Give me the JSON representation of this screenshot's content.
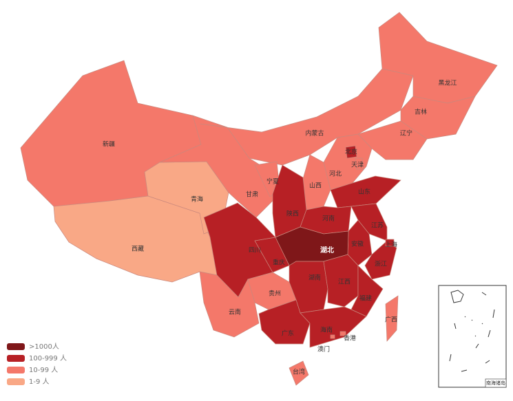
{
  "map": {
    "regions": [
      {
        "name": "新疆",
        "color": "#f4786a"
      },
      {
        "name": "西藏",
        "color": "#f9a886"
      },
      {
        "name": "青海",
        "color": "#f9a886"
      },
      {
        "name": "甘肃",
        "color": "#f4786a"
      },
      {
        "name": "内蒙古",
        "color": "#f4786a"
      },
      {
        "name": "黑龙江",
        "color": "#f4786a"
      },
      {
        "name": "吉林",
        "color": "#f4786a"
      },
      {
        "name": "辽宁",
        "color": "#f4786a"
      },
      {
        "name": "河北",
        "color": "#f4786a"
      },
      {
        "name": "山西",
        "color": "#f4786a"
      },
      {
        "name": "宁夏",
        "color": "#f4786a"
      },
      {
        "name": "陕西",
        "color": "#b72025"
      },
      {
        "name": "山东",
        "color": "#b72025"
      },
      {
        "name": "河南",
        "color": "#b72025"
      },
      {
        "name": "江苏",
        "color": "#b72025"
      },
      {
        "name": "安徽",
        "color": "#b72025"
      },
      {
        "name": "浙江",
        "color": "#b72025"
      },
      {
        "name": "湖北",
        "color": "#7f1719"
      },
      {
        "name": "重庆",
        "color": "#b72025"
      },
      {
        "name": "四川",
        "color": "#b72025"
      },
      {
        "name": "贵州",
        "color": "#f4786a"
      },
      {
        "name": "湖南",
        "color": "#b72025"
      },
      {
        "name": "江西",
        "color": "#b72025"
      },
      {
        "name": "福建",
        "color": "#b72025"
      },
      {
        "name": "云南",
        "color": "#f4786a"
      },
      {
        "name": "广西",
        "color": "#b72025"
      },
      {
        "name": "广东",
        "color": "#b72025"
      },
      {
        "name": "海南",
        "color": "#f4786a"
      },
      {
        "name": "台湾",
        "color": "#f4786a"
      },
      {
        "name": "北京",
        "color": "#b72025"
      },
      {
        "name": "天津",
        "color": "#f4786a"
      },
      {
        "name": "上海",
        "color": "#b72025"
      },
      {
        "name": "香港",
        "color": "#f4786a"
      },
      {
        "name": "澳门",
        "color": "#f4786a"
      }
    ],
    "legend": [
      {
        "label": ">1000人",
        "color": "#7f1719"
      },
      {
        "label": "100-999 人",
        "color": "#b72025"
      },
      {
        "label": "10-99 人",
        "color": "#f4786a"
      },
      {
        "label": "1-9 人",
        "color": "#f9a886"
      }
    ],
    "inset_label": "南海诸岛"
  }
}
